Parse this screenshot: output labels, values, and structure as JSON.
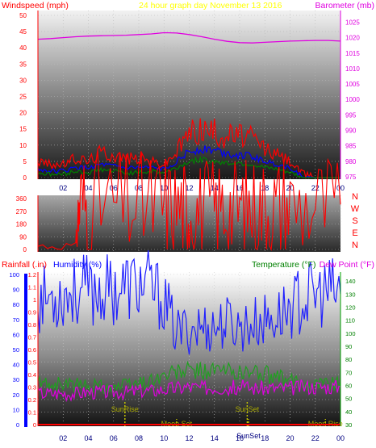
{
  "chart_data": [
    {
      "type": "line",
      "title": "24 hour graph day   November 13 2016",
      "left_axis_label": "Windspeed (mph)",
      "right_axis_label": "Barometer (mb)",
      "x_ticks": [
        "02",
        "04",
        "06",
        "08",
        "10",
        "12",
        "14",
        "16",
        "18",
        "20",
        "22",
        "00"
      ],
      "left_ticks": [
        "0",
        "5",
        "10",
        "15",
        "20",
        "25",
        "30",
        "35",
        "40",
        "45",
        "50"
      ],
      "right_ticks": [
        "975",
        "980",
        "985",
        "990",
        "995",
        "1000",
        "1005",
        "1010",
        "1015",
        "1020",
        "1025"
      ],
      "ylim_left": [
        0,
        50
      ],
      "ylim_right": [
        975,
        1028
      ],
      "grid": true,
      "colors": {
        "gust": "#ff0000",
        "average": "#0000ff",
        "speed": "#008000",
        "barometer": "#e000e0",
        "title": "#ffff00"
      },
      "x_hours": [
        0,
        1,
        2,
        3,
        4,
        5,
        6,
        7,
        8,
        9,
        10,
        11,
        12,
        13,
        14,
        15,
        16,
        17,
        18,
        19,
        20,
        21,
        22,
        23,
        24
      ],
      "series": [
        {
          "name": "Barometer",
          "axis": "right",
          "values": [
            1019.5,
            1019.7,
            1020.0,
            1020.3,
            1020.5,
            1020.6,
            1020.7,
            1020.8,
            1021.0,
            1021.2,
            1021.6,
            1021.5,
            1021.0,
            1020.3,
            1019.5,
            1018.8,
            1018.4,
            1018.3,
            1018.5,
            1018.7,
            1018.9,
            1019.0,
            1019.1,
            1019.1,
            1018.9
          ]
        },
        {
          "name": "Gust",
          "axis": "left",
          "values": [
            5.0,
            4.0,
            4.0,
            6.0,
            5.0,
            8.0,
            7.0,
            6.0,
            6.0,
            5.0,
            4.0,
            8.0,
            14.0,
            15.0,
            14.0,
            13.0,
            13.0,
            12.0,
            9.0,
            7.0,
            5.0,
            1.0,
            0.0,
            0.0,
            0.0
          ]
        },
        {
          "name": "Average",
          "axis": "left",
          "values": [
            2.5,
            2.0,
            2.0,
            3.0,
            3.0,
            4.0,
            3.5,
            3.0,
            3.0,
            3.0,
            2.5,
            5.0,
            8.0,
            9.0,
            8.5,
            7.5,
            7.0,
            6.5,
            5.0,
            4.0,
            3.0,
            0.5,
            0.0,
            0.0,
            0.0
          ]
        },
        {
          "name": "Speed",
          "axis": "left",
          "values": [
            1.5,
            1.0,
            1.0,
            2.0,
            1.5,
            2.5,
            2.0,
            1.5,
            1.5,
            2.0,
            1.5,
            3.0,
            5.0,
            5.5,
            5.0,
            4.5,
            4.5,
            4.0,
            3.0,
            2.5,
            1.5,
            0.0,
            0.0,
            0.0,
            0.0
          ]
        }
      ]
    },
    {
      "type": "line",
      "y_ticks": [
        "0",
        "90",
        "180",
        "270",
        "360"
      ],
      "direction_labels": [
        "N",
        "W",
        "S",
        "E",
        "N"
      ],
      "ylim": [
        0,
        360
      ],
      "x": [
        0,
        3.0,
        3.3,
        4.0,
        6.0,
        8.0,
        9.5,
        10.5,
        11.5,
        12.0,
        13.0,
        14.0,
        15.0,
        16.0,
        17.0,
        18.0,
        19.0,
        20.0,
        22.0,
        24.0
      ],
      "series": [
        {
          "name": "Wind direction",
          "values": [
            25,
            25,
            340,
            315,
            318,
            316,
            318,
            312,
            300,
            285,
            293,
            298,
            300,
            295,
            300,
            305,
            310,
            315,
            318,
            318
          ]
        }
      ]
    },
    {
      "type": "line",
      "rain_label": "Rainfall (.in)",
      "humidity_label": "Humidity (%)",
      "temperature_label": "Temperature (°F)",
      "dewpoint_label": "Dew Point (°F)",
      "rain_ticks": [
        "0",
        "0.1",
        "0.2",
        "0.3",
        "0.4",
        "0.5",
        "0.6",
        "0.7",
        "0.8",
        "0.9",
        "1",
        "1.1",
        "1.2"
      ],
      "humidity_ticks": [
        "0",
        "10",
        "20",
        "30",
        "40",
        "50",
        "60",
        "70",
        "80",
        "90",
        "100"
      ],
      "temperature_ticks": [
        "30",
        "40",
        "50",
        "60",
        "70",
        "80",
        "90",
        "100",
        "110",
        "120",
        "130",
        "140"
      ],
      "ylim_humidity": [
        0,
        100
      ],
      "ylim_temperature": [
        30,
        145
      ],
      "x_hours": [
        0,
        1,
        2,
        3,
        4,
        5,
        6,
        7,
        8,
        9,
        10,
        11,
        12,
        13,
        14,
        15,
        16,
        17,
        18,
        19,
        20,
        21,
        22,
        23,
        24
      ],
      "series": [
        {
          "name": "Humidity",
          "axis": "humidity",
          "values": [
            83,
            85,
            87,
            89,
            89,
            89,
            90,
            92,
            93,
            91,
            82,
            61,
            64,
            65,
            65,
            68,
            65,
            67,
            69,
            72,
            78,
            83,
            86,
            88,
            87
          ]
        },
        {
          "name": "Temperature",
          "axis": "temperature",
          "values": [
            62,
            61,
            61,
            60,
            60,
            60,
            59,
            60,
            62,
            64,
            67,
            70,
            71,
            71,
            71,
            71,
            70,
            70,
            69,
            66,
            63,
            62,
            62,
            62,
            62
          ]
        },
        {
          "name": "Dew Point",
          "axis": "temperature",
          "values": [
            54,
            54,
            54,
            54,
            55,
            55,
            55,
            55,
            56,
            56,
            57,
            58,
            59,
            58,
            59,
            58,
            59,
            58,
            58,
            58,
            58,
            59,
            59,
            59,
            59
          ]
        },
        {
          "name": "Rainfall",
          "axis": "rain",
          "values": [
            0,
            0,
            0,
            0,
            0,
            0,
            0,
            0,
            0,
            0,
            0,
            0,
            0,
            0,
            0,
            0,
            0,
            0,
            0,
            0,
            0,
            0,
            0,
            0,
            0
          ]
        }
      ],
      "events": [
        {
          "label": "SunRise",
          "hour": 6.9
        },
        {
          "label": "Moon Set",
          "hour": 11.0
        },
        {
          "label": "SunSet",
          "hour": 16.6
        },
        {
          "label": "SunSet",
          "hour": 16.7
        },
        {
          "label": "Moon Rise",
          "hour": 22.8
        }
      ]
    }
  ]
}
